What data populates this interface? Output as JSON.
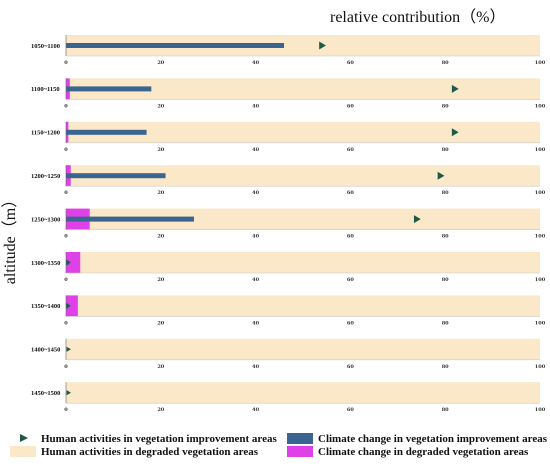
{
  "chart_data": {
    "type": "bar",
    "title": "relative contribution（%）",
    "ylabel": "altitude（m）",
    "xlabel": "",
    "xlim": [
      0,
      100
    ],
    "xticks": [
      0,
      20,
      40,
      60,
      80,
      100
    ],
    "grid": false,
    "legend_position": "bottom",
    "categories": [
      "1050~1100",
      "1100~1150",
      "1150~1200",
      "1200~1250",
      "1250~1300",
      "1300~1350",
      "1350~1400",
      "1400~1450",
      "1450~1500"
    ],
    "series": [
      {
        "name": "Human activities in degraded vegetation areas",
        "kind": "background-bar",
        "color": "#fae8c8",
        "values": [
          100,
          100,
          100,
          100,
          100,
          100,
          100,
          100,
          100
        ]
      },
      {
        "name": "Climate change in degraded vegetation areas",
        "kind": "bar",
        "color": "#e040e8",
        "values": [
          0,
          0.8,
          0.5,
          1.0,
          5.0,
          3.0,
          2.5,
          0,
          0
        ]
      },
      {
        "name": "Climate change in vegetation improvement areas",
        "kind": "bar",
        "color": "#3a6590",
        "values": [
          46,
          18,
          17,
          21,
          27,
          0.5,
          0.5,
          0,
          0
        ]
      },
      {
        "name": "Human activities in vegetation improvement areas",
        "kind": "marker",
        "color": "#1e5a45",
        "values": [
          54,
          82,
          82,
          79,
          74,
          0.5,
          0.5,
          0.5,
          0.5
        ]
      }
    ]
  }
}
